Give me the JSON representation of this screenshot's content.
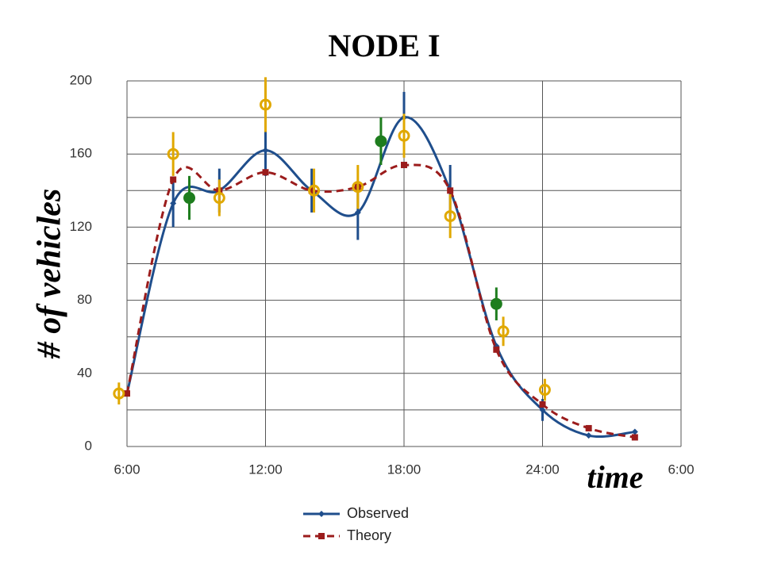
{
  "chart_data": {
    "type": "line",
    "title": "NODE I",
    "y_label": "# of vehicles",
    "x_label": "time",
    "xlim": [
      6,
      30
    ],
    "xticks": [
      {
        "value": 6,
        "label": "6:00"
      },
      {
        "value": 12,
        "label": "12:00"
      },
      {
        "value": 18,
        "label": "18:00"
      },
      {
        "value": 24,
        "label": "24:00"
      },
      {
        "value": 30,
        "label": "6:00"
      }
    ],
    "ylim": [
      0,
      200
    ],
    "yticks": [
      0,
      40,
      80,
      120,
      160,
      200
    ],
    "minor_ygrid": [
      20,
      60,
      100,
      140,
      180
    ],
    "grid": true,
    "series": [
      {
        "name": "Observed",
        "color": "#1f4e8c",
        "line": "solid",
        "marker": "diamond",
        "smooth": true,
        "x": [
          6,
          8,
          10,
          12,
          14,
          16,
          18,
          20,
          22,
          24,
          26,
          28
        ],
        "values": [
          29,
          133,
          140,
          162,
          140,
          128,
          180,
          140,
          55,
          20,
          6,
          8
        ],
        "errors": [
          null,
          13,
          12,
          14,
          12,
          15,
          14,
          14,
          null,
          6,
          null,
          null
        ]
      },
      {
        "name": "Theory",
        "color": "#9b1c1c",
        "line": "dashed",
        "marker": "square",
        "smooth": true,
        "x": [
          6,
          8,
          10,
          12,
          14,
          16,
          18,
          20,
          22,
          24,
          26,
          28
        ],
        "values": [
          29,
          146,
          140,
          150,
          140,
          142,
          154,
          140,
          53,
          23,
          10,
          5
        ],
        "errors": [
          null,
          null,
          null,
          null,
          null,
          null,
          null,
          null,
          null,
          null,
          null,
          null
        ]
      },
      {
        "color": "#e0a800",
        "line": "none",
        "marker": "open-circle",
        "x": [
          5.65,
          8,
          10,
          12,
          14.1,
          16,
          18,
          20,
          22.3,
          24.1
        ],
        "values": [
          29,
          160,
          136,
          187,
          140,
          142,
          170,
          126,
          63,
          31
        ],
        "errors": [
          6,
          12,
          10,
          15,
          12,
          12,
          12,
          12,
          8,
          6
        ]
      },
      {
        "color": "#1e7d1e",
        "line": "none",
        "marker": "filled-circle",
        "x": [
          8.7,
          17,
          22
        ],
        "values": [
          136,
          167,
          78
        ],
        "errors": [
          12,
          13,
          9
        ]
      }
    ],
    "legend": "bottom"
  }
}
